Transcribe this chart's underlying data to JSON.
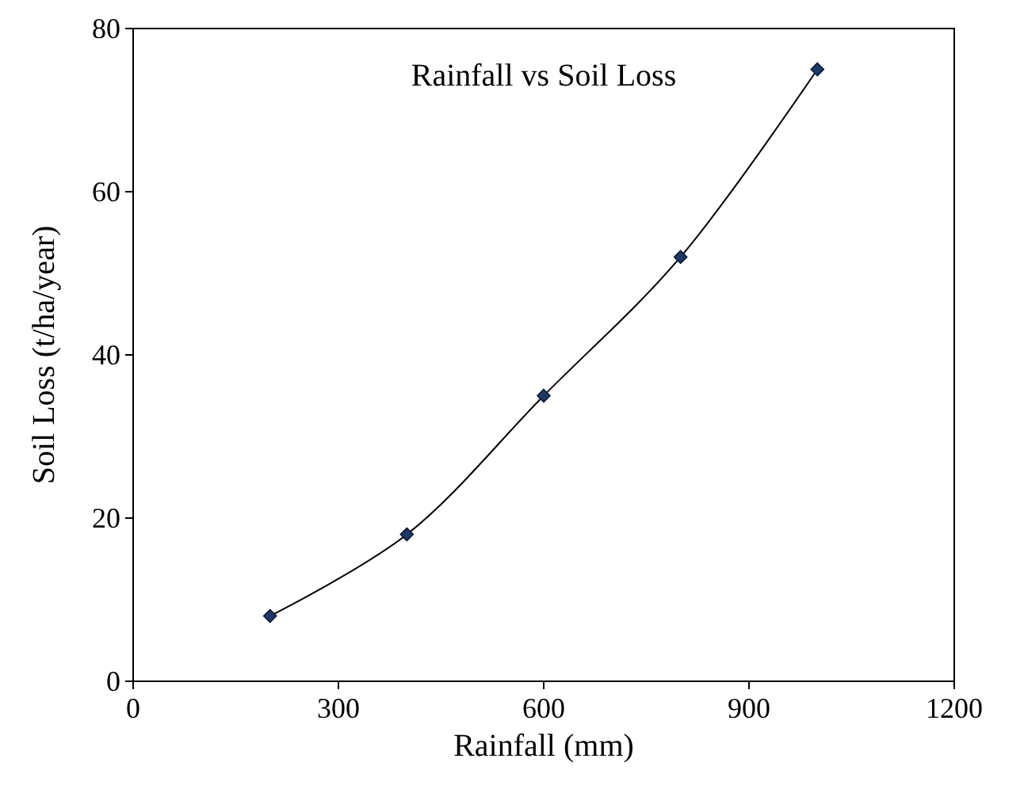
{
  "chart_data": {
    "type": "line",
    "title": "Rainfall vs Soil Loss",
    "xlabel": "Rainfall (mm)",
    "ylabel": "Soil Loss (t/ha/year)",
    "x": [
      200,
      400,
      600,
      800,
      1000
    ],
    "series": [
      {
        "color": "#1f3864",
        "values": [
          8,
          18,
          35,
          52,
          75
        ]
      }
    ],
    "xlim": [
      0,
      1200
    ],
    "xticks": [
      0,
      300,
      600,
      900,
      1200
    ],
    "ylim": [
      0,
      80
    ],
    "yticks": [
      0,
      20,
      40,
      60,
      80
    ],
    "grid": false,
    "marker": "diamond",
    "line_style": "solid"
  }
}
